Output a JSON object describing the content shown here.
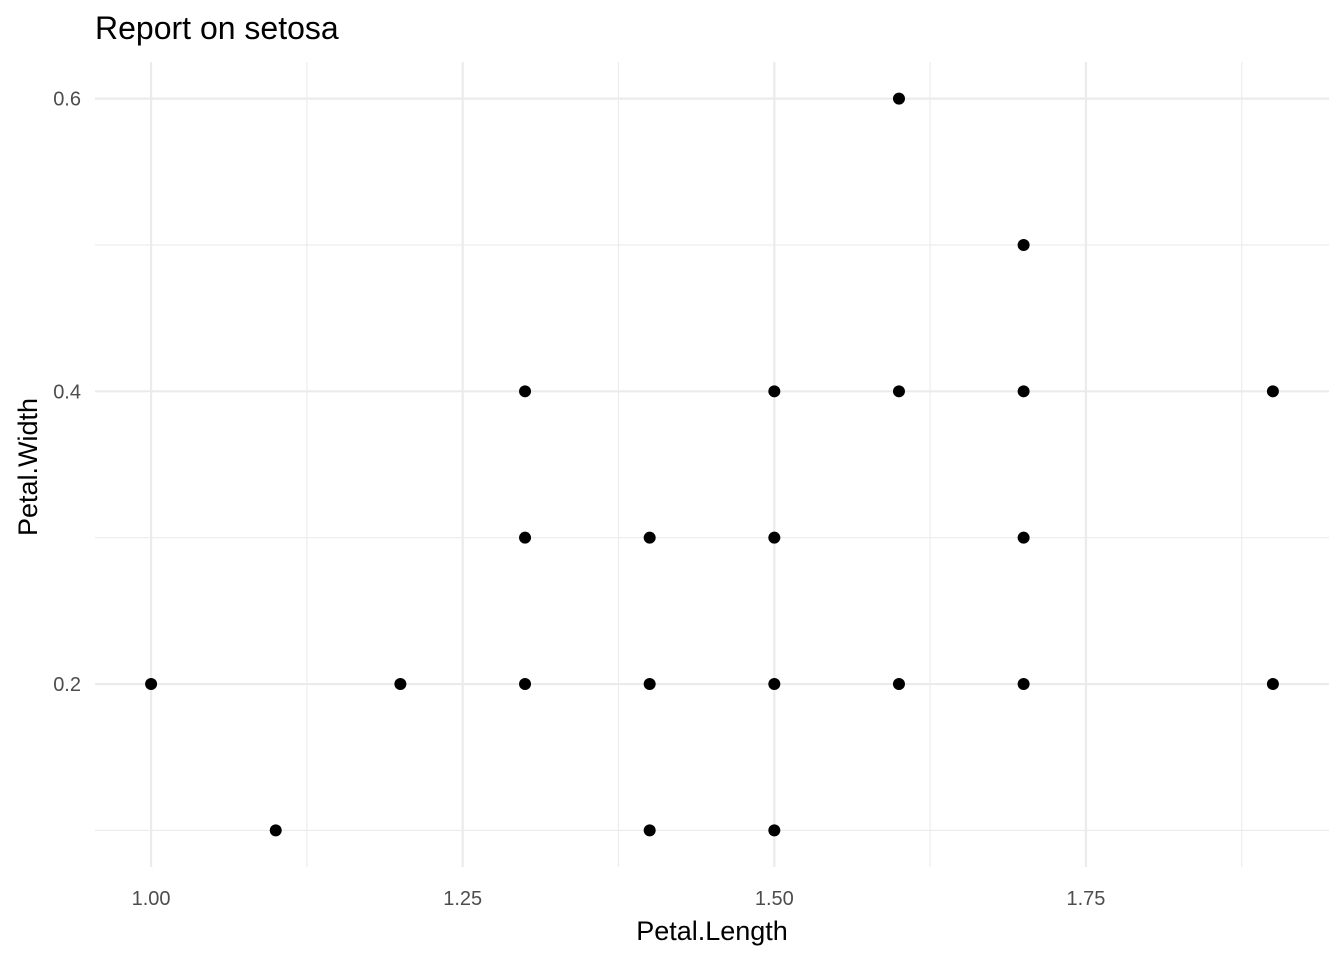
{
  "chart_data": {
    "type": "scatter",
    "title": "Report on setosa",
    "xlabel": "Petal.Length",
    "ylabel": "Petal.Width",
    "xlim": [
      0.955,
      1.945
    ],
    "ylim": [
      0.075,
      0.625
    ],
    "x_ticks": [
      1.0,
      1.25,
      1.5,
      1.75
    ],
    "x_tick_labels": [
      "1.00",
      "1.25",
      "1.50",
      "1.75"
    ],
    "x_minor_ticks": [
      1.125,
      1.375,
      1.625,
      1.875
    ],
    "y_ticks": [
      0.2,
      0.4,
      0.6
    ],
    "y_tick_labels": [
      "0.2",
      "0.4",
      "0.6"
    ],
    "y_minor_ticks": [
      0.1,
      0.3,
      0.5
    ],
    "grid": true,
    "legend": "none",
    "point_color": "#000000",
    "points": [
      {
        "x": 1.0,
        "y": 0.2
      },
      {
        "x": 1.1,
        "y": 0.1
      },
      {
        "x": 1.2,
        "y": 0.2
      },
      {
        "x": 1.3,
        "y": 0.2
      },
      {
        "x": 1.3,
        "y": 0.3
      },
      {
        "x": 1.3,
        "y": 0.4
      },
      {
        "x": 1.4,
        "y": 0.1
      },
      {
        "x": 1.4,
        "y": 0.2
      },
      {
        "x": 1.4,
        "y": 0.3
      },
      {
        "x": 1.5,
        "y": 0.1
      },
      {
        "x": 1.5,
        "y": 0.2
      },
      {
        "x": 1.5,
        "y": 0.3
      },
      {
        "x": 1.5,
        "y": 0.4
      },
      {
        "x": 1.6,
        "y": 0.2
      },
      {
        "x": 1.6,
        "y": 0.4
      },
      {
        "x": 1.6,
        "y": 0.6
      },
      {
        "x": 1.7,
        "y": 0.2
      },
      {
        "x": 1.7,
        "y": 0.3
      },
      {
        "x": 1.7,
        "y": 0.4
      },
      {
        "x": 1.7,
        "y": 0.5
      },
      {
        "x": 1.9,
        "y": 0.2
      },
      {
        "x": 1.9,
        "y": 0.4
      }
    ]
  }
}
